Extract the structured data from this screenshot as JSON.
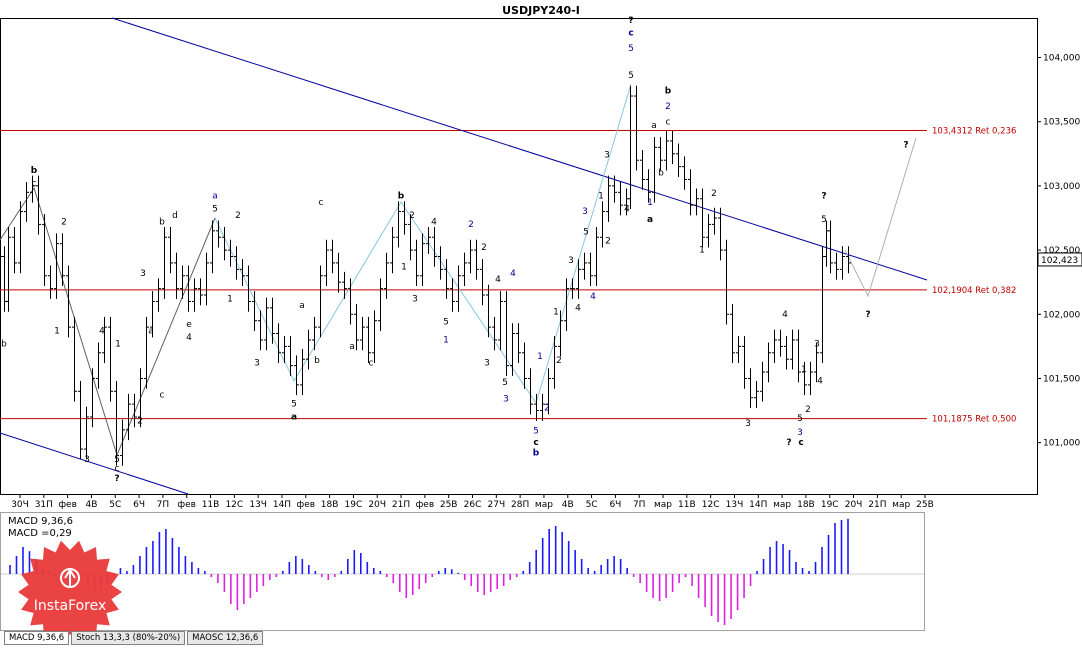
{
  "chart_data": {
    "type": "candlestick",
    "title": "USDJPY240-I",
    "ylim": [
      100.6,
      104.3
    ],
    "y_ticks": [
      "104,000",
      "103,500",
      "103,000",
      "102,500",
      "102,000",
      "101,500",
      "101,000"
    ],
    "y_tick_values": [
      104.0,
      103.5,
      103.0,
      102.5,
      102.0,
      101.5,
      101.0
    ],
    "current_price": "102,423",
    "current_price_value": 102.423,
    "x_ticks": [
      "30Ч",
      "31П",
      "фев",
      "4В",
      "5С",
      "6Ч",
      "7П",
      "фев",
      "11В",
      "12С",
      "13Ч",
      "14П",
      "фев",
      "18В",
      "19С",
      "20Ч",
      "21П",
      "фев",
      "25В",
      "26С",
      "27Ч",
      "28П",
      "мар",
      "4В",
      "5С",
      "6Ч",
      "7П",
      "мар",
      "11В",
      "12С",
      "13Ч",
      "14П",
      "мар",
      "18В",
      "19С",
      "20Ч",
      "21П",
      "мар",
      "25В"
    ],
    "levels": [
      {
        "label": "103,4312 Ret 0,236",
        "value": 103.4312
      },
      {
        "label": "102,1904 Ret 0,382",
        "value": 102.1904
      },
      {
        "label": "101,1875 Ret 0,500",
        "value": 101.1875
      }
    ],
    "price_path": [
      [
        0,
        102.45
      ],
      [
        4,
        102.1
      ],
      [
        8,
        102.6
      ],
      [
        14,
        102.4
      ],
      [
        20,
        102.8
      ],
      [
        26,
        102.95
      ],
      [
        32,
        103.0
      ],
      [
        38,
        102.7
      ],
      [
        44,
        102.3
      ],
      [
        50,
        102.2
      ],
      [
        56,
        102.55
      ],
      [
        62,
        102.3
      ],
      [
        68,
        101.9
      ],
      [
        74,
        101.4
      ],
      [
        80,
        100.95
      ],
      [
        86,
        101.2
      ],
      [
        92,
        101.5
      ],
      [
        98,
        101.7
      ],
      [
        104,
        101.9
      ],
      [
        110,
        101.4
      ],
      [
        116,
        100.9
      ],
      [
        122,
        101.1
      ],
      [
        128,
        101.3
      ],
      [
        134,
        101.2
      ],
      [
        140,
        101.5
      ],
      [
        146,
        101.9
      ],
      [
        152,
        102.1
      ],
      [
        158,
        102.2
      ],
      [
        164,
        102.6
      ],
      [
        170,
        102.4
      ],
      [
        176,
        102.2
      ],
      [
        182,
        102.3
      ],
      [
        188,
        102.1
      ],
      [
        194,
        102.2
      ],
      [
        200,
        102.15
      ],
      [
        206,
        102.4
      ],
      [
        212,
        102.65
      ],
      [
        218,
        102.6
      ],
      [
        224,
        102.5
      ],
      [
        230,
        102.45
      ],
      [
        236,
        102.35
      ],
      [
        242,
        102.3
      ],
      [
        248,
        102.1
      ],
      [
        254,
        101.95
      ],
      [
        260,
        101.8
      ],
      [
        266,
        102.05
      ],
      [
        272,
        101.85
      ],
      [
        278,
        101.7
      ],
      [
        284,
        101.75
      ],
      [
        290,
        101.6
      ],
      [
        296,
        101.45
      ],
      [
        302,
        101.65
      ],
      [
        308,
        101.8
      ],
      [
        314,
        101.9
      ],
      [
        320,
        102.3
      ],
      [
        326,
        102.5
      ],
      [
        332,
        102.4
      ],
      [
        338,
        102.25
      ],
      [
        344,
        102.2
      ],
      [
        350,
        102.0
      ],
      [
        356,
        101.8
      ],
      [
        362,
        101.9
      ],
      [
        368,
        101.7
      ],
      [
        374,
        101.95
      ],
      [
        380,
        102.2
      ],
      [
        386,
        102.4
      ],
      [
        392,
        102.6
      ],
      [
        398,
        102.8
      ],
      [
        404,
        102.7
      ],
      [
        410,
        102.5
      ],
      [
        416,
        102.3
      ],
      [
        422,
        102.55
      ],
      [
        428,
        102.6
      ],
      [
        434,
        102.45
      ],
      [
        440,
        102.35
      ],
      [
        446,
        102.2
      ],
      [
        452,
        102.1
      ],
      [
        458,
        102.3
      ],
      [
        464,
        102.4
      ],
      [
        470,
        102.5
      ],
      [
        476,
        102.35
      ],
      [
        482,
        102.15
      ],
      [
        488,
        101.9
      ],
      [
        494,
        101.8
      ],
      [
        500,
        102.1
      ],
      [
        506,
        101.6
      ],
      [
        512,
        101.85
      ],
      [
        518,
        101.7
      ],
      [
        524,
        101.5
      ],
      [
        530,
        101.3
      ],
      [
        536,
        101.25
      ],
      [
        542,
        101.3
      ],
      [
        548,
        101.5
      ],
      [
        554,
        101.75
      ],
      [
        560,
        101.95
      ],
      [
        566,
        102.2
      ],
      [
        572,
        102.2
      ],
      [
        578,
        102.35
      ],
      [
        584,
        102.4
      ],
      [
        590,
        102.3
      ],
      [
        596,
        102.6
      ],
      [
        602,
        102.8
      ],
      [
        608,
        103.0
      ],
      [
        614,
        102.95
      ],
      [
        620,
        102.85
      ],
      [
        626,
        102.9
      ],
      [
        630,
        103.7
      ],
      [
        636,
        103.2
      ],
      [
        642,
        103.05
      ],
      [
        648,
        102.95
      ],
      [
        654,
        103.3
      ],
      [
        660,
        103.2
      ],
      [
        666,
        103.35
      ],
      [
        672,
        103.25
      ],
      [
        678,
        103.15
      ],
      [
        684,
        103.05
      ],
      [
        690,
        102.85
      ],
      [
        696,
        102.9
      ],
      [
        702,
        102.6
      ],
      [
        708,
        102.7
      ],
      [
        714,
        102.75
      ],
      [
        720,
        102.5
      ],
      [
        726,
        102.0
      ],
      [
        732,
        101.7
      ],
      [
        738,
        101.75
      ],
      [
        744,
        101.5
      ],
      [
        750,
        101.35
      ],
      [
        756,
        101.4
      ],
      [
        762,
        101.55
      ],
      [
        768,
        101.7
      ],
      [
        774,
        101.8
      ],
      [
        780,
        101.75
      ],
      [
        786,
        101.65
      ],
      [
        792,
        101.8
      ],
      [
        798,
        101.55
      ],
      [
        804,
        101.45
      ],
      [
        810,
        101.55
      ],
      [
        816,
        101.7
      ],
      [
        822,
        102.45
      ],
      [
        826,
        102.65
      ],
      [
        830,
        102.4
      ],
      [
        836,
        102.35
      ],
      [
        842,
        102.45
      ],
      [
        848,
        102.4
      ]
    ],
    "indicator": {
      "name": "MACD 9,36,6",
      "value_text": "MACD =0,29",
      "ylim": [
        -0.9,
        1.0
      ],
      "histogram": [
        0.15,
        0.3,
        0.45,
        0.38,
        0.25,
        0.1,
        0.05,
        -0.05,
        0.02,
        0.1,
        0.08,
        -0.05,
        -0.2,
        -0.3,
        -0.25,
        -0.15,
        -0.05,
        0.1,
        0.05,
        0.15,
        0.3,
        0.45,
        0.55,
        0.7,
        0.75,
        0.6,
        0.45,
        0.3,
        0.2,
        0.1,
        0.05,
        -0.05,
        -0.15,
        -0.3,
        -0.5,
        -0.6,
        -0.5,
        -0.4,
        -0.3,
        -0.2,
        -0.1,
        -0.05,
        0.05,
        0.2,
        0.3,
        0.25,
        0.15,
        0.05,
        -0.05,
        -0.1,
        -0.05,
        0.05,
        0.25,
        0.4,
        0.35,
        0.2,
        0.1,
        0.05,
        -0.05,
        -0.15,
        -0.3,
        -0.4,
        -0.35,
        -0.25,
        -0.15,
        -0.05,
        0.05,
        0.1,
        0.08,
        0.02,
        -0.1,
        -0.2,
        -0.3,
        -0.35,
        -0.3,
        -0.25,
        -0.2,
        -0.1,
        -0.05,
        0.05,
        0.2,
        0.4,
        0.6,
        0.75,
        0.8,
        0.7,
        0.55,
        0.4,
        0.25,
        0.1,
        0.05,
        0.15,
        0.25,
        0.3,
        0.25,
        0.1,
        -0.05,
        -0.15,
        -0.3,
        -0.4,
        -0.45,
        -0.4,
        -0.3,
        -0.15,
        -0.05,
        -0.2,
        -0.4,
        -0.55,
        -0.7,
        -0.8,
        -0.85,
        -0.75,
        -0.6,
        -0.4,
        -0.2,
        0.05,
        0.25,
        0.45,
        0.55,
        0.5,
        0.4,
        0.2,
        0.1,
        0.05,
        0.2,
        0.45,
        0.65,
        0.85,
        0.9,
        0.92
      ]
    },
    "wave_labels": [
      {
        "text": "b",
        "x": 34,
        "y": 103.1,
        "color": "#000000",
        "bold": true
      },
      {
        "text": "c",
        "x": 34,
        "y": 103.0,
        "color": "#000000"
      },
      {
        "text": "2",
        "x": 64,
        "y": 102.7,
        "color": "#000000"
      },
      {
        "text": "b",
        "x": 4,
        "y": 101.75,
        "color": "#000000"
      },
      {
        "text": "1",
        "x": 57,
        "y": 101.85,
        "color": "#000000"
      },
      {
        "text": "4",
        "x": 102,
        "y": 101.85,
        "color": "#000000"
      },
      {
        "text": "1",
        "x": 118,
        "y": 101.75,
        "color": "#000000"
      },
      {
        "text": "5",
        "x": 117,
        "y": 100.85,
        "color": "#000000"
      },
      {
        "text": "c",
        "x": 117,
        "y": 100.78,
        "color": "#000000"
      },
      {
        "text": "?",
        "x": 117,
        "y": 100.7,
        "color": "#000000",
        "bold": true
      },
      {
        "text": "3",
        "x": 87,
        "y": 100.85,
        "color": "#000000"
      },
      {
        "text": "2",
        "x": 140,
        "y": 101.15,
        "color": "#000000"
      },
      {
        "text": "3",
        "x": 143,
        "y": 102.3,
        "color": "#000000"
      },
      {
        "text": "a",
        "x": 151,
        "y": 101.85,
        "color": "#000000"
      },
      {
        "text": "c",
        "x": 162,
        "y": 101.35,
        "color": "#000000"
      },
      {
        "text": "b",
        "x": 162,
        "y": 102.7,
        "color": "#000000"
      },
      {
        "text": "d",
        "x": 175,
        "y": 102.75,
        "color": "#000000"
      },
      {
        "text": "e",
        "x": 189,
        "y": 101.9,
        "color": "#000000"
      },
      {
        "text": "4",
        "x": 189,
        "y": 101.8,
        "color": "#000000"
      },
      {
        "text": "a",
        "x": 215,
        "y": 102.9,
        "color": "#000090"
      },
      {
        "text": "5",
        "x": 215,
        "y": 102.8,
        "color": "#000000"
      },
      {
        "text": "2",
        "x": 238,
        "y": 102.75,
        "color": "#000000"
      },
      {
        "text": "1",
        "x": 230,
        "y": 102.1,
        "color": "#000000"
      },
      {
        "text": "3",
        "x": 257,
        "y": 101.6,
        "color": "#000000"
      },
      {
        "text": "c",
        "x": 321,
        "y": 102.85,
        "color": "#000000"
      },
      {
        "text": "a",
        "x": 302,
        "y": 102.05,
        "color": "#000000"
      },
      {
        "text": "b",
        "x": 317,
        "y": 101.62,
        "color": "#000000"
      },
      {
        "text": "5",
        "x": 294,
        "y": 101.28,
        "color": "#000000"
      },
      {
        "text": "a",
        "x": 294,
        "y": 101.18,
        "color": "#000000",
        "bold": true
      },
      {
        "text": "a",
        "x": 352,
        "y": 101.73,
        "color": "#000000"
      },
      {
        "text": "c",
        "x": 371,
        "y": 101.6,
        "color": "#000000"
      },
      {
        "text": "b",
        "x": 401,
        "y": 102.9,
        "color": "#000000",
        "bold": true
      },
      {
        "text": "2",
        "x": 412,
        "y": 102.75,
        "color": "#000000"
      },
      {
        "text": "4",
        "x": 434,
        "y": 102.7,
        "color": "#000000"
      },
      {
        "text": "1",
        "x": 404,
        "y": 102.35,
        "color": "#000000"
      },
      {
        "text": "3",
        "x": 415,
        "y": 102.1,
        "color": "#000000"
      },
      {
        "text": "2",
        "x": 471,
        "y": 102.68,
        "color": "#000090"
      },
      {
        "text": "2",
        "x": 484,
        "y": 102.5,
        "color": "#000000"
      },
      {
        "text": "5",
        "x": 446,
        "y": 101.92,
        "color": "#000000"
      },
      {
        "text": "1",
        "x": 446,
        "y": 101.78,
        "color": "#000090"
      },
      {
        "text": "4",
        "x": 498,
        "y": 102.25,
        "color": "#000000"
      },
      {
        "text": "4",
        "x": 513,
        "y": 102.3,
        "color": "#000090"
      },
      {
        "text": "3",
        "x": 487,
        "y": 101.6,
        "color": "#000000"
      },
      {
        "text": "5",
        "x": 505,
        "y": 101.45,
        "color": "#000000"
      },
      {
        "text": "3",
        "x": 506,
        "y": 101.32,
        "color": "#000090"
      },
      {
        "text": "5",
        "x": 536,
        "y": 101.07,
        "color": "#000090"
      },
      {
        "text": "c",
        "x": 536,
        "y": 100.98,
        "color": "#000000",
        "bold": true
      },
      {
        "text": "b",
        "x": 536,
        "y": 100.9,
        "color": "#000090",
        "bold": true
      },
      {
        "text": "2",
        "x": 547,
        "y": 101.25,
        "color": "#000090"
      },
      {
        "text": "1",
        "x": 540,
        "y": 101.65,
        "color": "#000090"
      },
      {
        "text": "2",
        "x": 559,
        "y": 101.62,
        "color": "#000000"
      },
      {
        "text": "1",
        "x": 556,
        "y": 102.0,
        "color": "#000000"
      },
      {
        "text": "3",
        "x": 571,
        "y": 102.4,
        "color": "#000000"
      },
      {
        "text": "4",
        "x": 578,
        "y": 102.03,
        "color": "#000000"
      },
      {
        "text": "4",
        "x": 593,
        "y": 102.12,
        "color": "#000090"
      },
      {
        "text": "5",
        "x": 586,
        "y": 102.62,
        "color": "#000000"
      },
      {
        "text": "3",
        "x": 585,
        "y": 102.78,
        "color": "#000090"
      },
      {
        "text": "1",
        "x": 601,
        "y": 102.9,
        "color": "#000000"
      },
      {
        "text": "2",
        "x": 608,
        "y": 102.55,
        "color": "#000000"
      },
      {
        "text": "3",
        "x": 607,
        "y": 103.22,
        "color": "#000000"
      },
      {
        "text": "4",
        "x": 627,
        "y": 102.8,
        "color": "#000000"
      },
      {
        "text": "1",
        "x": 650,
        "y": 102.85,
        "color": "#000090"
      },
      {
        "text": "a",
        "x": 650,
        "y": 102.72,
        "color": "#000000",
        "bold": true
      },
      {
        "text": "5",
        "x": 631,
        "y": 103.84,
        "color": "#000000"
      },
      {
        "text": "5",
        "x": 631,
        "y": 104.05,
        "color": "#000090"
      },
      {
        "text": "c",
        "x": 631,
        "y": 104.17,
        "color": "#000090",
        "bold": true
      },
      {
        "text": "?",
        "x": 631,
        "y": 104.27,
        "color": "#000000",
        "bold": true
      },
      {
        "text": "a",
        "x": 654,
        "y": 103.45,
        "color": "#000000"
      },
      {
        "text": "b",
        "x": 661,
        "y": 103.08,
        "color": "#000000"
      },
      {
        "text": "c",
        "x": 668,
        "y": 103.48,
        "color": "#000000"
      },
      {
        "text": "2",
        "x": 668,
        "y": 103.6,
        "color": "#000090"
      },
      {
        "text": "b",
        "x": 668,
        "y": 103.72,
        "color": "#000000",
        "bold": true
      },
      {
        "text": "2",
        "x": 714,
        "y": 102.92,
        "color": "#000000"
      },
      {
        "text": "1",
        "x": 702,
        "y": 102.48,
        "color": "#000000"
      },
      {
        "text": "3",
        "x": 748,
        "y": 101.13,
        "color": "#000000"
      },
      {
        "text": "4",
        "x": 785,
        "y": 101.98,
        "color": "#000000"
      },
      {
        "text": "5",
        "x": 800,
        "y": 101.17,
        "color": "#000000"
      },
      {
        "text": "3",
        "x": 800,
        "y": 101.06,
        "color": "#000090"
      },
      {
        "text": "?",
        "x": 789,
        "y": 100.98,
        "color": "#000000",
        "bold": true
      },
      {
        "text": "c",
        "x": 801,
        "y": 100.98,
        "color": "#000000",
        "bold": true
      },
      {
        "text": "1",
        "x": 804,
        "y": 101.55,
        "color": "#000000"
      },
      {
        "text": "2",
        "x": 808,
        "y": 101.24,
        "color": "#000000"
      },
      {
        "text": "3",
        "x": 817,
        "y": 101.75,
        "color": "#000000"
      },
      {
        "text": "4",
        "x": 820,
        "y": 101.46,
        "color": "#000000"
      },
      {
        "text": "5",
        "x": 824,
        "y": 102.72,
        "color": "#000000"
      },
      {
        "text": "?",
        "x": 824,
        "y": 102.9,
        "color": "#000000",
        "bold": true
      },
      {
        "text": "?",
        "x": 868,
        "y": 101.98,
        "color": "#000000",
        "bold": true
      },
      {
        "text": "?",
        "x": 906,
        "y": 103.3,
        "color": "#000000",
        "bold": true
      }
    ]
  },
  "tabs": [
    {
      "label": "MACD 9,36,6",
      "active": true
    },
    {
      "label": "Stoch 13,3,3 (80%-20%)",
      "active": false
    },
    {
      "label": "MAOSC 12,36,6",
      "active": false
    }
  ],
  "logo": {
    "text": "InstaForex",
    "color": "#e8393a"
  }
}
